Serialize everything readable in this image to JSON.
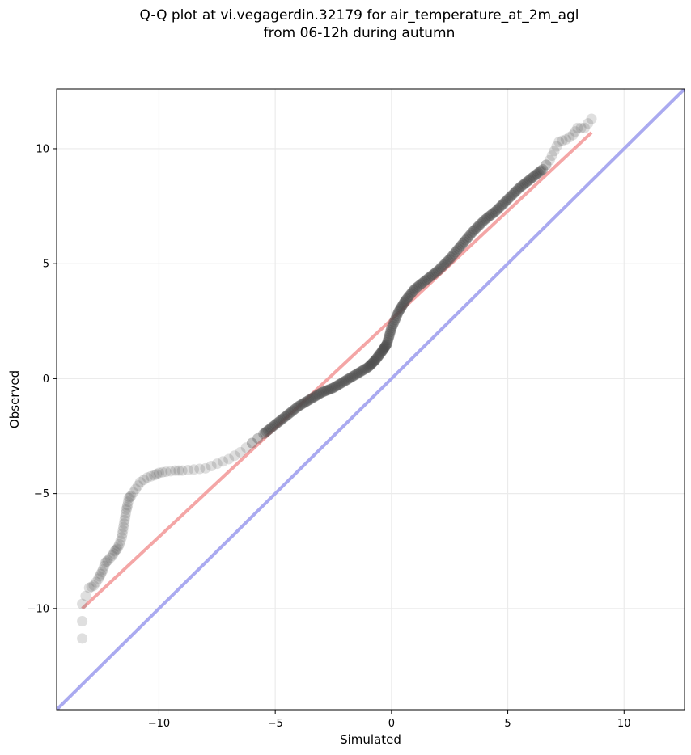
{
  "chart_data": {
    "type": "scatter",
    "title_line1": "Q-Q plot at vi.vegagerdin.32179 for air_temperature_at_2m_agl",
    "title_line2": "from 06-12h during autumn",
    "xlabel": "Simulated",
    "ylabel": "Observed",
    "xlim": [
      -14.4,
      12.6
    ],
    "ylim": [
      -14.4,
      12.6
    ],
    "xticks": [
      -10,
      -5,
      0,
      5,
      10
    ],
    "yticks": [
      -10,
      -5,
      0,
      5,
      10
    ],
    "xtick_labels": [
      "−10",
      "−5",
      "0",
      "5",
      "10"
    ],
    "ytick_labels": [
      "−10",
      "−5",
      "0",
      "5",
      "10"
    ],
    "grid": true,
    "reference_lines": [
      {
        "kind": "identity",
        "color": "#aaaaf0",
        "x": [
          -14.4,
          12.6
        ],
        "y": [
          -14.4,
          12.6
        ]
      },
      {
        "kind": "fit",
        "color": "#f4a6a6",
        "x": [
          -13.3,
          8.6
        ],
        "y": [
          -10.0,
          10.7
        ]
      }
    ],
    "quantiles": {
      "x": [
        -13.3,
        -13.3,
        -13.0,
        -12.8,
        -12.6,
        -12.5,
        -12.4,
        -12.3,
        -12.2,
        -12.0,
        -11.9,
        -11.8,
        -11.7,
        -11.6,
        -11.55,
        -11.5,
        -11.45,
        -11.4,
        -11.35,
        -11.3,
        -11.2,
        -11.0,
        -10.8,
        -10.5,
        -10.2,
        -10.0,
        -9.7,
        -9.3,
        -9.0,
        -8.5,
        -8.0,
        -7.5,
        -7.0,
        -6.5,
        -6.0,
        -5.5,
        -5.0,
        -4.5,
        -4.0,
        -3.5,
        -3.0,
        -2.5,
        -2.0,
        -1.5,
        -1.0,
        -0.7,
        -0.4,
        -0.2,
        0.0,
        0.3,
        0.6,
        1.0,
        1.5,
        2.0,
        2.5,
        3.0,
        3.5,
        4.0,
        4.5,
        5.0,
        5.5,
        6.0,
        6.5,
        6.8,
        7.0,
        7.2,
        7.5,
        7.8,
        8.0,
        8.3,
        8.6
      ],
      "y": [
        -11.3,
        -9.8,
        -9.1,
        -9.0,
        -8.7,
        -8.5,
        -8.3,
        -8.0,
        -7.9,
        -7.7,
        -7.5,
        -7.4,
        -7.2,
        -6.9,
        -6.6,
        -6.3,
        -6.0,
        -5.7,
        -5.5,
        -5.2,
        -5.1,
        -4.8,
        -4.5,
        -4.3,
        -4.2,
        -4.1,
        -4.05,
        -4.0,
        -4.0,
        -3.95,
        -3.9,
        -3.7,
        -3.5,
        -3.2,
        -2.8,
        -2.4,
        -2.0,
        -1.6,
        -1.2,
        -0.9,
        -0.6,
        -0.4,
        -0.1,
        0.2,
        0.5,
        0.8,
        1.2,
        1.5,
        2.2,
        2.9,
        3.4,
        3.9,
        4.3,
        4.7,
        5.2,
        5.8,
        6.4,
        6.9,
        7.3,
        7.8,
        8.3,
        8.7,
        9.1,
        9.5,
        9.9,
        10.3,
        10.4,
        10.6,
        10.9,
        10.9,
        11.3
      ]
    },
    "colors": {
      "points": "#4d4d4d",
      "grid": "#ebebeb",
      "identity": "#aaaaf0",
      "fit": "#f4a6a6"
    }
  }
}
